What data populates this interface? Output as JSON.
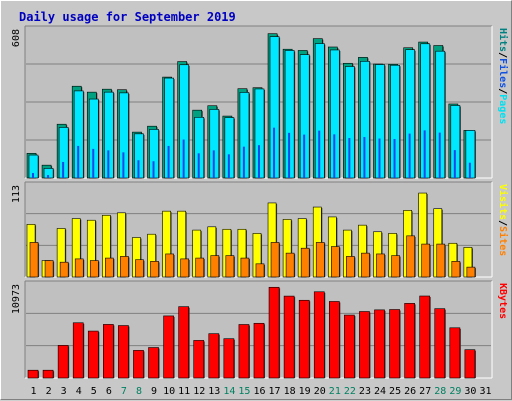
{
  "title": "Daily usage for September 2019",
  "chart_data": [
    {
      "type": "bar",
      "title": "Daily usage for September 2019",
      "categories": [
        "1",
        "2",
        "3",
        "4",
        "5",
        "6",
        "7",
        "8",
        "9",
        "10",
        "11",
        "12",
        "13",
        "14",
        "15",
        "16",
        "17",
        "18",
        "19",
        "20",
        "21",
        "22",
        "23",
        "24",
        "25",
        "26",
        "27",
        "28",
        "29",
        "30",
        "31"
      ],
      "weekend_days": [
        "7",
        "8",
        "14",
        "15",
        "21",
        "22",
        "28",
        "29"
      ],
      "y_max_label": "608",
      "ylim": [
        0,
        608
      ],
      "right_labels": [
        "Pages",
        "Files",
        "Hits"
      ],
      "right_label_colors": [
        "#00e0f0",
        "#1050e0",
        "#008080"
      ],
      "series": [
        {
          "name": "Hits",
          "color": "#00a080",
          "values": [
            100,
            52,
            218,
            372,
            348,
            360,
            358,
            186,
            210,
            409,
            472,
            275,
            293,
            251,
            362,
            366,
            585,
            522,
            517,
            565,
            531,
            465,
            489,
            462,
            461,
            528,
            551,
            537,
            300,
            193,
            0
          ]
        },
        {
          "name": "Files",
          "color": "#00e8ff",
          "values": [
            93,
            39,
            205,
            353,
            320,
            348,
            345,
            179,
            197,
            405,
            459,
            246,
            278,
            245,
            347,
            361,
            573,
            517,
            500,
            545,
            519,
            452,
            473,
            460,
            457,
            520,
            544,
            514,
            294,
            193,
            0
          ]
        },
        {
          "name": "Pages",
          "color": "#1848e8",
          "values": [
            20,
            12,
            65,
            130,
            118,
            112,
            104,
            72,
            68,
            130,
            156,
            100,
            112,
            96,
            127,
            133,
            204,
            183,
            176,
            192,
            177,
            162,
            166,
            160,
            158,
            180,
            193,
            184,
            113,
            62,
            0
          ]
        }
      ]
    },
    {
      "type": "bar",
      "y_max_label": "113",
      "ylim": [
        0,
        113
      ],
      "right_labels": [
        "Sites",
        "Visits"
      ],
      "right_label_colors": [
        "#ff8000",
        "#ffff00"
      ],
      "series": [
        {
          "name": "Visits",
          "color": "#ffff00",
          "values": [
            64,
            20,
            59,
            71,
            69,
            75,
            78,
            48,
            52,
            80,
            80,
            57,
            61,
            58,
            58,
            53,
            90,
            70,
            71,
            85,
            73,
            57,
            63,
            55,
            53,
            81,
            102,
            83,
            41,
            36,
            0
          ]
        },
        {
          "name": "Sites",
          "color": "#ff8000",
          "values": [
            42,
            20,
            18,
            22,
            20,
            23,
            25,
            21,
            19,
            28,
            22,
            23,
            26,
            26,
            23,
            16,
            42,
            29,
            35,
            42,
            37,
            25,
            29,
            28,
            26,
            50,
            40,
            40,
            19,
            12,
            0
          ]
        }
      ]
    },
    {
      "type": "bar",
      "y_max_label": "10973",
      "ylim": [
        0,
        10973
      ],
      "right_labels": [
        "KBytes"
      ],
      "right_label_colors": [
        "#ff0000"
      ],
      "series": [
        {
          "name": "KBytes",
          "color": "#ff0000",
          "values": [
            900,
            900,
            3770,
            6380,
            5420,
            6190,
            6060,
            3190,
            3520,
            7170,
            8240,
            4340,
            5120,
            4540,
            6180,
            6320,
            10480,
            9460,
            8980,
            9960,
            8840,
            7270,
            7680,
            7870,
            7910,
            8620,
            9470,
            8010,
            5800,
            3270,
            0
          ]
        }
      ]
    }
  ]
}
